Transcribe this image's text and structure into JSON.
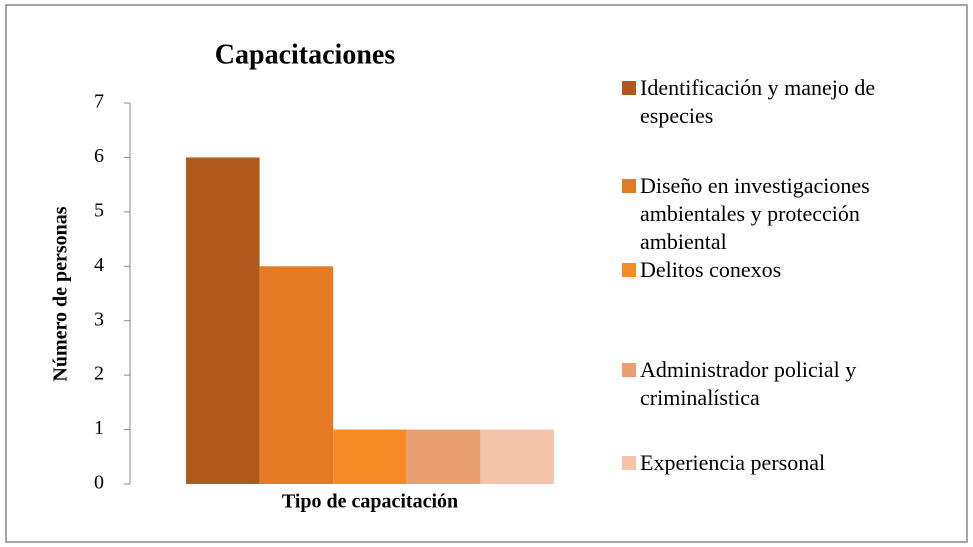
{
  "chart_data": {
    "type": "bar",
    "title": "Capacitaciones",
    "x_label": "Tipo de capacitación",
    "y_label": "Número de personas",
    "series": [
      {
        "name": "Identificación y manejo de especies",
        "color": "#b0591c",
        "values": [
          6
        ]
      },
      {
        "name": "Diseño en investigaciones ambientales  y protección ambiental",
        "color": "#e57a25",
        "values": [
          4
        ]
      },
      {
        "name": "Delitos conexos",
        "color": "#f68a25",
        "values": [
          1
        ]
      },
      {
        "name": "Administrador policial y criminalística",
        "color": "#eb9e72",
        "values": [
          1
        ]
      },
      {
        "name": "Experiencia personal",
        "color": "#f4c3aa",
        "values": [
          1
        ]
      }
    ],
    "ylim": [
      0,
      7
    ],
    "yticks": [
      0,
      1,
      2,
      3,
      4,
      5,
      6,
      7
    ]
  }
}
